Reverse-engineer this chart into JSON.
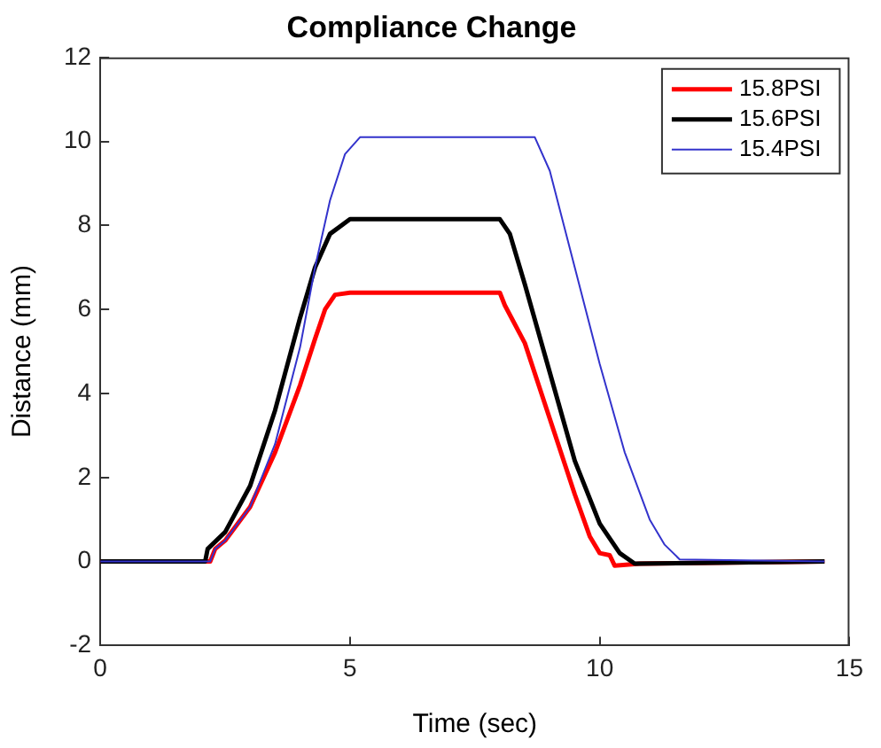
{
  "chart_data": {
    "type": "line",
    "title": "Compliance Change",
    "xlabel": "Time (sec)",
    "ylabel": "Distance (mm)",
    "xlim": [
      0,
      15
    ],
    "xticks": [
      0,
      5,
      10,
      15
    ],
    "ylim": [
      -2,
      12
    ],
    "yticks": [
      -2,
      0,
      2,
      4,
      6,
      8,
      10,
      12
    ],
    "grid": false,
    "legend": "top right",
    "marker": "none",
    "line_style": "solid",
    "series": [
      {
        "name": "15.8PSI",
        "color": "#ff0000",
        "x": [
          0,
          2.2,
          2.3,
          2.5,
          3,
          3.5,
          4,
          4.3,
          4.5,
          4.7,
          5,
          8,
          8.1,
          8.5,
          9,
          9.5,
          9.8,
          10,
          10.2,
          10.3,
          10.8,
          14.5
        ],
        "values": [
          0,
          0,
          0.3,
          0.5,
          1.3,
          2.6,
          4.2,
          5.3,
          6,
          6.35,
          6.4,
          6.4,
          6.1,
          5.2,
          3.4,
          1.6,
          0.6,
          0.2,
          0.15,
          -0.1,
          -0.05,
          0
        ]
      },
      {
        "name": "15.6PSI",
        "color": "#000000",
        "x": [
          0,
          2.1,
          2.15,
          2.5,
          3,
          3.5,
          4,
          4.3,
          4.6,
          5,
          8,
          8.2,
          8.5,
          9,
          9.5,
          10,
          10.4,
          10.7,
          14.5
        ],
        "values": [
          0,
          0,
          0.3,
          0.7,
          1.8,
          3.6,
          5.8,
          7,
          7.8,
          8.15,
          8.15,
          7.8,
          6.6,
          4.5,
          2.4,
          0.9,
          0.2,
          -0.05,
          0
        ]
      },
      {
        "name": "15.4PSI",
        "color": "#3333cc",
        "x": [
          0,
          2.2,
          2.3,
          2.5,
          3,
          3.5,
          4,
          4.3,
          4.6,
          4.9,
          5.2,
          8.7,
          9,
          9.5,
          10,
          10.5,
          11,
          11.3,
          11.6,
          14.5
        ],
        "values": [
          0,
          0,
          0.3,
          0.5,
          1.3,
          2.8,
          5.1,
          7,
          8.6,
          9.7,
          10.1,
          10.1,
          9.3,
          7,
          4.7,
          2.6,
          1,
          0.4,
          0.05,
          0
        ]
      }
    ]
  }
}
